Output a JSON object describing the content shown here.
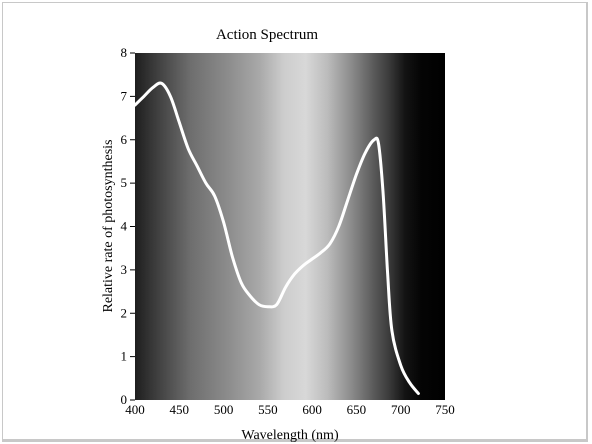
{
  "chart_data": {
    "type": "line",
    "title": "Action Spectrum",
    "xlabel": "Wavelength (nm)",
    "ylabel": "Relative rate of photosynthesis",
    "xlim": [
      400,
      750
    ],
    "ylim": [
      0,
      8
    ],
    "xticks": [
      400,
      450,
      500,
      550,
      600,
      650,
      700,
      750
    ],
    "yticks": [
      0,
      1,
      2,
      3,
      4,
      5,
      6,
      7,
      8
    ],
    "grid": false,
    "background": "visible-light spectrum gradient (dark violet end to bright mid to black red end), rendered in grayscale",
    "line_color": "#ffffff",
    "series": [
      {
        "x": [
          400,
          410,
          420,
          430,
          440,
          450,
          460,
          470,
          480,
          490,
          500,
          510,
          520,
          530,
          540,
          550,
          560,
          570,
          580,
          590,
          600,
          610,
          620,
          630,
          640,
          650,
          660,
          670,
          675,
          680,
          685,
          690,
          700,
          710,
          720
        ],
        "y": [
          6.8,
          7.0,
          7.2,
          7.3,
          7.0,
          6.4,
          5.8,
          5.4,
          5.0,
          4.7,
          4.1,
          3.3,
          2.7,
          2.4,
          2.2,
          2.15,
          2.2,
          2.6,
          2.9,
          3.1,
          3.25,
          3.4,
          3.6,
          4.0,
          4.6,
          5.2,
          5.7,
          6.0,
          5.9,
          4.8,
          3.0,
          1.6,
          0.8,
          0.4,
          0.15
        ]
      }
    ]
  }
}
